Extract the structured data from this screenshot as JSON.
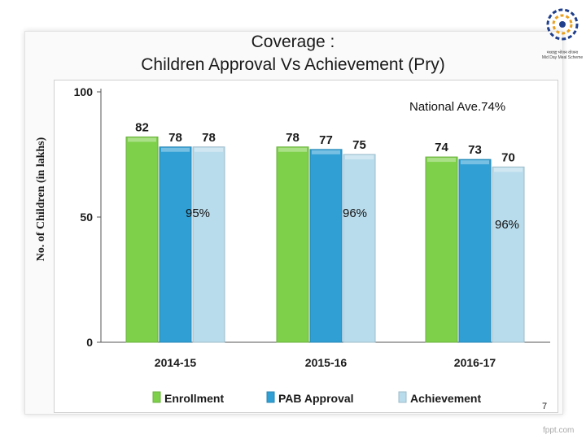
{
  "title_line1": "Coverage :",
  "title_line2": "Children Approval Vs Achievement (Pry)",
  "annotation": "National Ave.74%",
  "percent_labels": [
    "95%",
    "96%",
    "96%"
  ],
  "page_number": "7",
  "watermark": "fppt.com",
  "logo": {
    "name": "Mid Day Meal Scheme",
    "caption_hindi": "मध्याह्न भोजन योजना",
    "caption_english": "Mid Day Meal Scheme"
  },
  "chart_data": {
    "type": "bar",
    "title": "Coverage : Children Approval Vs Achievement (Pry)",
    "ylabel": "No. of Children (in lakhs)",
    "xlabel": "",
    "categories": [
      "2014-15",
      "2015-16",
      "2016-17"
    ],
    "series": [
      {
        "name": "Enrollment",
        "values": [
          82,
          78,
          74
        ],
        "color": "#7ed04a"
      },
      {
        "name": "PAB Approval",
        "values": [
          78,
          77,
          73
        ],
        "color": "#2f9fd4"
      },
      {
        "name": "Achievement",
        "values": [
          78,
          75,
          70
        ],
        "color": "#b9dcec"
      }
    ],
    "ylim": [
      0,
      100
    ],
    "yticks": [
      0,
      50,
      100
    ],
    "legend": "bottom",
    "grid": false
  }
}
